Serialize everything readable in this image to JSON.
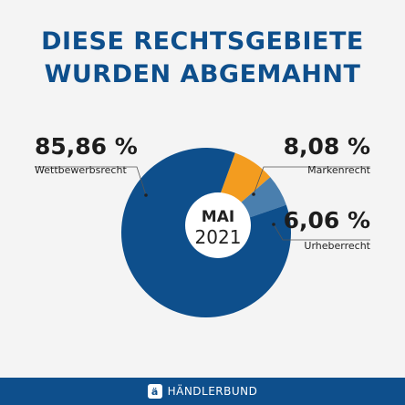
{
  "title_line1": "DIESE RECHTSGEBIETE",
  "title_line2": "WURDEN ABGEMAHNT",
  "center": {
    "month": "MAI",
    "year": "2021"
  },
  "chart_data": {
    "type": "pie",
    "title": "DIESE RECHTSGEBIETE WURDEN ABGEMAHNT",
    "categories": [
      "Wettbewerbsrecht",
      "Markenrecht",
      "Urheberrecht"
    ],
    "values": [
      85.86,
      8.08,
      6.06
    ],
    "value_labels": [
      "85,86 %",
      "8,08 %",
      "6,06 %"
    ],
    "colors": [
      "#0e4f8c",
      "#f39c1f",
      "#4a7fae"
    ]
  },
  "footer": {
    "brand": "HÄNDLERBUND",
    "logo_letter": "ä"
  }
}
